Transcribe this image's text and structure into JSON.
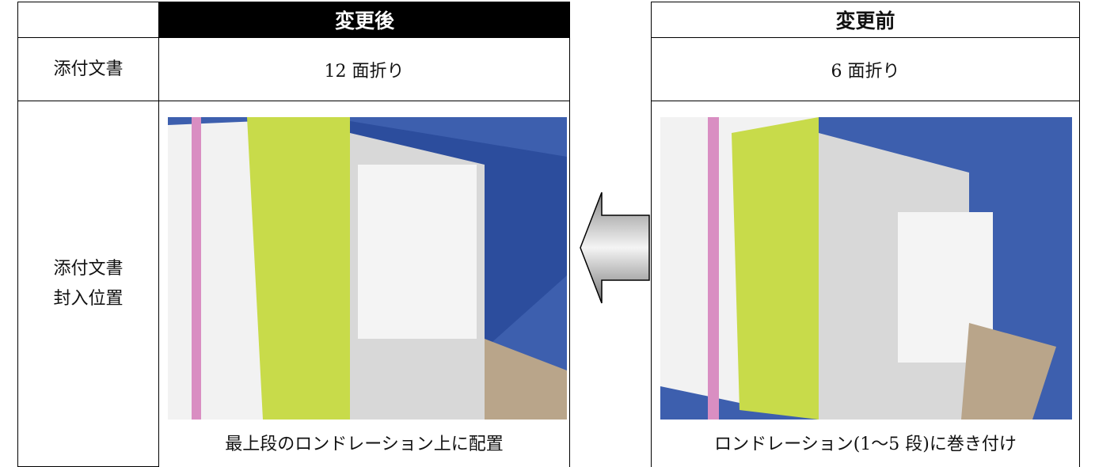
{
  "table": {
    "header": {
      "after": "変更後",
      "before": "変更前"
    },
    "rows": [
      {
        "label": [
          "添付文書"
        ],
        "after": "12 面折り",
        "before": "6 面折り"
      },
      {
        "label": [
          "添付文書",
          "封入位置"
        ],
        "after": "最上段のロンドレーション上に配置",
        "before": "ロンドレーション(1～5 段)に巻き付け"
      }
    ]
  }
}
